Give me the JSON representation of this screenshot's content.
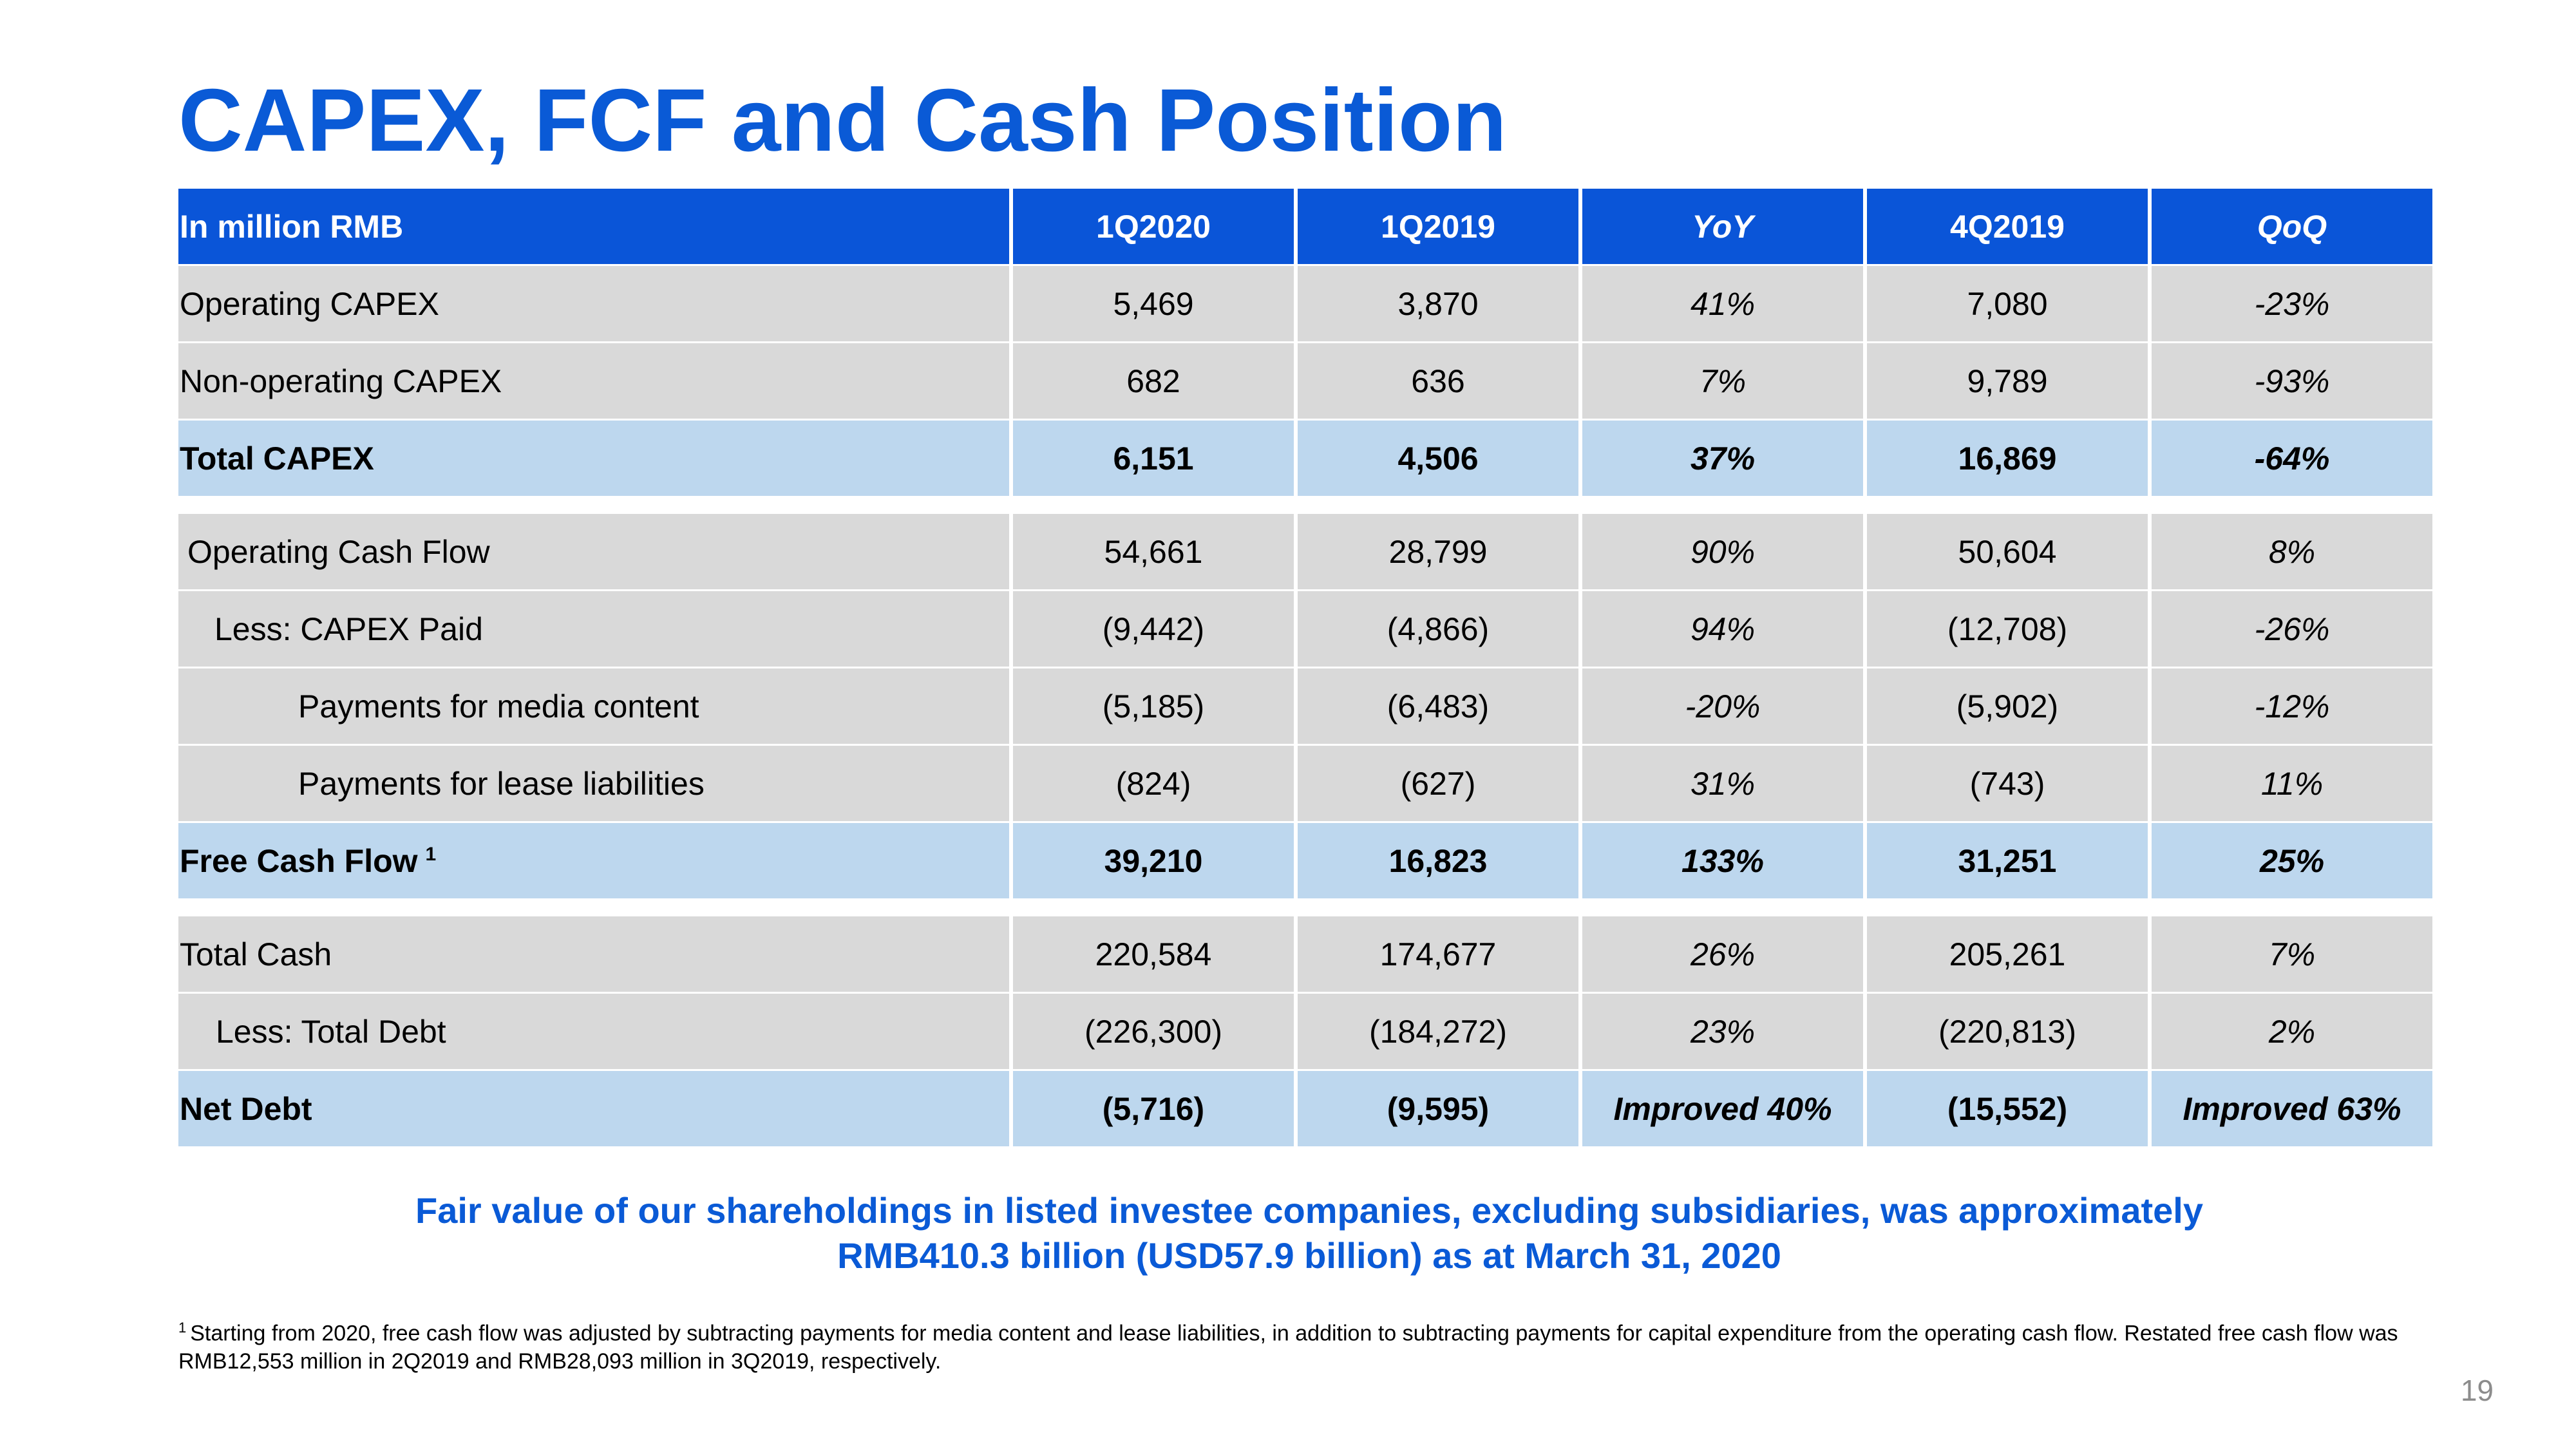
{
  "slide": {
    "title": "CAPEX, FCF and Cash Position",
    "page_number": "19"
  },
  "table": {
    "headers": [
      "In million RMB",
      "1Q2020",
      "1Q2019",
      "YoY",
      "4Q2019",
      "QoQ"
    ],
    "sections": [
      {
        "rows": [
          {
            "label": "Operating CAPEX",
            "values": [
              "5,469",
              "3,870",
              "41%",
              "7,080",
              "-23%"
            ],
            "total": false,
            "indent": 0
          },
          {
            "label": "Non-operating CAPEX",
            "values": [
              "682",
              "636",
              "7%",
              "9,789",
              "-93%"
            ],
            "total": false,
            "indent": 0
          },
          {
            "label": "Total CAPEX",
            "values": [
              "6,151",
              "4,506",
              "37%",
              "16,869",
              "-64%"
            ],
            "total": true,
            "indent": 0
          }
        ]
      },
      {
        "rows": [
          {
            "label": "Operating Cash Flow",
            "values": [
              "54,661",
              "28,799",
              "90%",
              "50,604",
              "8%"
            ],
            "total": false,
            "indent": 1
          },
          {
            "label": "Less: CAPEX Paid",
            "values": [
              "(9,442)",
              "(4,866)",
              "94%",
              "(12,708)",
              "-26%"
            ],
            "total": false,
            "indent": 2
          },
          {
            "label": "Payments for media content",
            "values": [
              "(5,185)",
              "(6,483)",
              "-20%",
              "(5,902)",
              "-12%"
            ],
            "total": false,
            "indent": 3
          },
          {
            "label": "Payments for lease liabilities",
            "values": [
              "(824)",
              "(627)",
              "31%",
              "(743)",
              "11%"
            ],
            "total": false,
            "indent": 3
          },
          {
            "label": "Free Cash Flow",
            "footnote_ref": "1",
            "values": [
              "39,210",
              "16,823",
              "133%",
              "31,251",
              "25%"
            ],
            "total": true,
            "indent": 0
          }
        ]
      },
      {
        "rows": [
          {
            "label": "Total Cash",
            "values": [
              "220,584",
              "174,677",
              "26%",
              "205,261",
              "7%"
            ],
            "total": false,
            "indent": 0
          },
          {
            "label": "Less: Total Debt",
            "values": [
              "(226,300)",
              "(184,272)",
              "23%",
              "(220,813)",
              "2%"
            ],
            "total": false,
            "indent": 2
          },
          {
            "label": "Net Debt",
            "values": [
              "(5,716)",
              "(9,595)",
              "Improved 40%",
              "(15,552)",
              "Improved 63%"
            ],
            "total": true,
            "indent": 0
          }
        ]
      }
    ]
  },
  "highlight": {
    "line1": "Fair value of our shareholdings in listed investee companies, excluding subsidiaries, was approximately",
    "line2": "RMB410.3 billion (USD57.9 billion) as at March 31, 2020"
  },
  "footnote": {
    "marker": "1",
    "text": "Starting from 2020, free cash flow was adjusted by subtracting payments for media content and lease liabilities, in addition to subtracting payments for capital expenditure from the operating cash flow. Restated free cash flow was RMB12,553 million in 2Q2019 and RMB28,093 million in 3Q2019, respectively."
  },
  "colors": {
    "title_blue": "#0A5AD6",
    "header_blue": "#0A55D8",
    "row_grey": "#D9D9D9",
    "total_light_blue": "#BDD7EE",
    "page_number_grey": "#8C8C8C"
  }
}
